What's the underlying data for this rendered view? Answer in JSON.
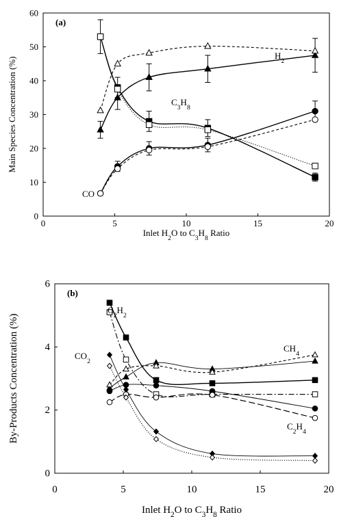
{
  "chart_data": [
    {
      "type": "line",
      "panel_label": "(a)",
      "xlabel": "Inlet H₂O to C₃H₈ Ratio",
      "ylabel": "Main Species Concentration (%)",
      "xlim": [
        0,
        20
      ],
      "ylim": [
        0,
        60
      ],
      "xticks": [
        "0",
        "5",
        "10",
        "15",
        "20"
      ],
      "yticks": [
        "0",
        "10",
        "20",
        "30",
        "40",
        "50",
        "60"
      ],
      "grid": false,
      "legend": "none",
      "annotations": [
        "H₂",
        "C₃H₈",
        "CO"
      ],
      "x": [
        4,
        5.2,
        7.4,
        11.5,
        19
      ],
      "series": [
        {
          "values": [
            25.5,
            35,
            41,
            43.5,
            47.5
          ],
          "errors": [
            2.5,
            3.5,
            4,
            4,
            5
          ],
          "marker": "filled-triangle",
          "line": "solid"
        },
        {
          "values": [
            31.2,
            45,
            48.2,
            50.2,
            48.8
          ],
          "marker": "open-triangle",
          "line": "dashed"
        },
        {
          "values": [
            53,
            38,
            28,
            26,
            11.5
          ],
          "errors": [
            5,
            3,
            3,
            2.5,
            1.2
          ],
          "marker": "filled-square",
          "line": "solid"
        },
        {
          "values": [
            53,
            37.5,
            27,
            25.5,
            14.8
          ],
          "marker": "open-square",
          "line": "dotted"
        },
        {
          "values": [
            6.7,
            14.7,
            20,
            21,
            31
          ],
          "errors": [
            0.5,
            1.5,
            2,
            2,
            3
          ],
          "marker": "filled-circle",
          "line": "solid"
        },
        {
          "values": [
            6.7,
            14,
            19.5,
            20.5,
            28.5
          ],
          "marker": "open-circle",
          "line": "dashed"
        }
      ]
    },
    {
      "type": "line",
      "panel_label": "(b)",
      "xlabel": "Inlet H₂O to C₃H₈ Ratio",
      "ylabel": "By-Products Concentration (%)",
      "xlim": [
        0,
        20
      ],
      "ylim": [
        0,
        6
      ],
      "xticks": [
        "0",
        "5",
        "10",
        "15",
        "20"
      ],
      "yticks": [
        "0",
        "2",
        "4",
        "6"
      ],
      "grid": false,
      "legend": "none",
      "annotations": [
        "C₂H₂",
        "CO₂",
        "CH₄",
        "C₂H₄"
      ],
      "x": [
        4,
        5.2,
        7.4,
        11.5,
        19
      ],
      "series": [
        {
          "values": [
            5.4,
            4.3,
            2.95,
            2.85,
            2.95
          ],
          "marker": "filled-square",
          "line": "solid"
        },
        {
          "values": [
            5.1,
            3.6,
            2.5,
            2.5,
            2.5
          ],
          "marker": "open-square",
          "line": "dash-dot"
        },
        {
          "values": [
            2.7,
            3.05,
            3.5,
            3.3,
            3.55
          ],
          "marker": "filled-triangle",
          "line": "thin-solid"
        },
        {
          "values": [
            2.8,
            3.3,
            3.4,
            3.2,
            3.75
          ],
          "marker": "open-triangle",
          "line": "dashed"
        },
        {
          "values": [
            2.6,
            2.8,
            2.78,
            2.6,
            2.05
          ],
          "marker": "filled-circle",
          "line": "thin-solid"
        },
        {
          "values": [
            2.25,
            2.5,
            2.4,
            2.48,
            1.75
          ],
          "marker": "open-circle",
          "line": "long-dash"
        },
        {
          "values": [
            3.75,
            2.65,
            1.32,
            0.62,
            0.55
          ],
          "marker": "filled-diamond",
          "line": "thin-solid"
        },
        {
          "values": [
            3.4,
            2.4,
            1.08,
            0.5,
            0.4
          ],
          "marker": "open-diamond",
          "line": "dotted"
        }
      ]
    }
  ]
}
